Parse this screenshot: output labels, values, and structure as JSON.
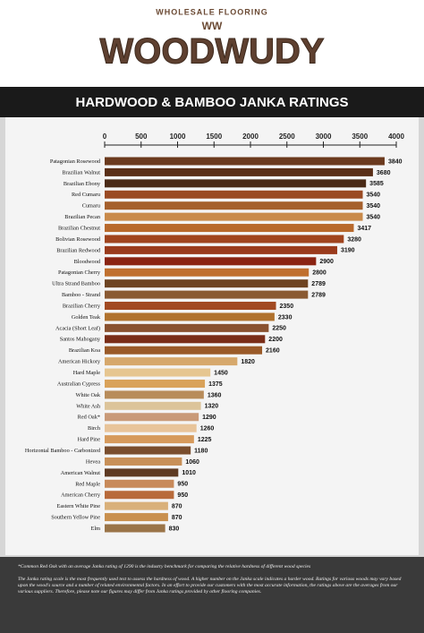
{
  "header": {
    "tagline": "WHOLESALE FLOORING",
    "monogram": "WW",
    "brand": "WOODWUDY"
  },
  "chart_data": {
    "type": "bar",
    "orientation": "horizontal",
    "title": "HARDWOOD & BAMBOO JANKA RATINGS",
    "categories": [
      "Patagonian Rosewood",
      "Brazilian Walnut",
      "Brazilian Ebony",
      "Red Cumaru",
      "Cumaru",
      "Brazilian Pecan",
      "Brazilian Chestnut",
      "Bolivian Rosewood",
      "Brazilian Redwood",
      "Bloodwood",
      "Patagonian Cherry",
      "Ultra Strand Bamboo",
      "Bamboo - Strand",
      "Brazilian Cherry",
      "Golden Teak",
      "Acacia (Short Leaf)",
      "Santos Mahogany",
      "Brazilian Koa",
      "American Hickory",
      "Hard Maple",
      "Australian Cypress",
      "White Oak",
      "White Ash",
      "Red Oak*",
      "Birch",
      "Hard Pine",
      "Horizontal Bamboo - Carbonized",
      "Hevea",
      "American Walnut",
      "Red Maple",
      "American Cherry",
      "Eastern White Pine",
      "Southern Yellow Pine",
      "Elm"
    ],
    "values": [
      3840,
      3680,
      3585,
      3540,
      3540,
      3540,
      3417,
      3280,
      3190,
      2900,
      2800,
      2789,
      2789,
      2350,
      2330,
      2250,
      2200,
      2160,
      1820,
      1450,
      1375,
      1360,
      1320,
      1290,
      1260,
      1225,
      1180,
      1060,
      1010,
      950,
      950,
      870,
      870,
      830
    ],
    "colors": [
      "#6b3a1e",
      "#5a2f17",
      "#4a2a16",
      "#9a4a22",
      "#a5602c",
      "#c98a4a",
      "#b8692c",
      "#a0441e",
      "#9a3b1c",
      "#8a2412",
      "#c0702f",
      "#6e4422",
      "#8a5a32",
      "#a24a22",
      "#b0722e",
      "#8a5230",
      "#7a2e18",
      "#9a5a28",
      "#d6a86c",
      "#e6c690",
      "#d9a25a",
      "#b88c5a",
      "#dcc49a",
      "#c99a78",
      "#e8c49a",
      "#d69a5c",
      "#7a4e2e",
      "#c89058",
      "#5e3a22",
      "#c88a5a",
      "#b86a3a",
      "#d9b07a",
      "#c9904e",
      "#9a7448"
    ],
    "xlim": [
      0,
      4000
    ],
    "xticks": [
      0,
      500,
      1000,
      1500,
      2000,
      2500,
      3000,
      3500,
      4000
    ]
  },
  "footer": {
    "notes": [
      "*Common Red Oak with an average Janka rating of 1290 is the industry benchmark for comparing the relative hardness of different wood species",
      "The Janka rating scale is the most frequently used test to assess the hardness of wood. A higher number on the Janka scale indicates a harder wood. Ratings for various woods may vary based upon the wood's source and a number of related environmental factors. In an effort to provide our customers with the most accurate information, the ratings above are the averages from our various suppliers. Therefore, please note our figures may differ from Janka ratings provided by other flooring companies."
    ]
  }
}
